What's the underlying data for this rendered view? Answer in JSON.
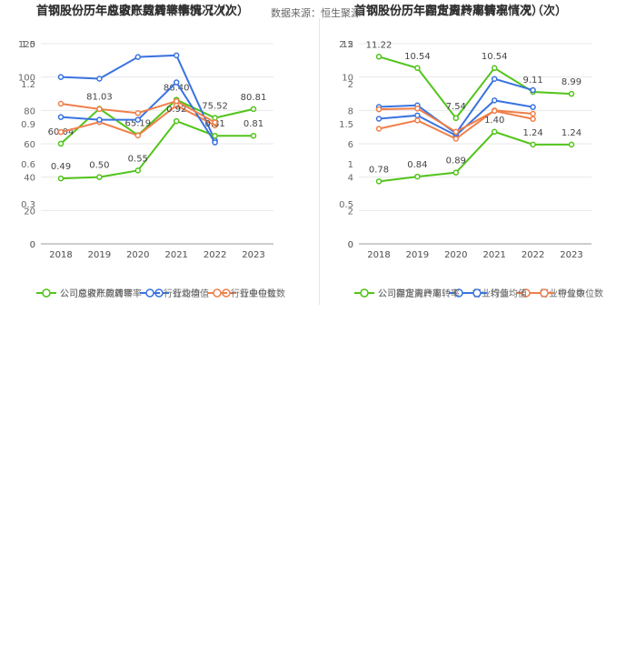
{
  "source_label": "数据来源：恒生聚源",
  "colors": {
    "company": "#52c41a",
    "avg": "#3a73e0",
    "median": "#f07f4a",
    "grid": "#e8e8e8",
    "axis": "#999999"
  },
  "chart_data": [
    {
      "type": "line",
      "title": "首钢股份历年应收账款周转率情况（次）",
      "categories": [
        "2018",
        "2019",
        "2020",
        "2021",
        "2022",
        "2023"
      ],
      "ylim": [
        0,
        120
      ],
      "yticks": [
        "0",
        "20",
        "40",
        "60",
        "80",
        "100",
        "120"
      ],
      "series": [
        {
          "name": "公司应收账款周转率",
          "color_key": "company",
          "values": [
            60.04,
            81.03,
            65.19,
            86.4,
            75.52,
            80.81
          ],
          "labels": [
            "60.04",
            "81.03",
            "65.19",
            "86.40",
            "75.52",
            "80.81"
          ]
        },
        {
          "name": "行业均值",
          "color_key": "avg",
          "values": [
            100,
            99,
            112,
            113,
            62,
            null
          ],
          "labels": []
        },
        {
          "name": "行业中位数",
          "color_key": "median",
          "values": [
            67,
            73,
            65,
            83,
            71,
            null
          ],
          "labels": []
        }
      ],
      "legend": [
        "公司应收账款周转率",
        "行业均值",
        "行业中位数"
      ]
    },
    {
      "type": "line",
      "title": "首钢股份历年存货周转率情况（次）",
      "categories": [
        "2018",
        "2019",
        "2020",
        "2021",
        "2022",
        "2023"
      ],
      "ylim": [
        0,
        12
      ],
      "yticks": [
        "0",
        "2",
        "4",
        "6",
        "8",
        "10",
        "12"
      ],
      "series": [
        {
          "name": "公司存货周转率",
          "color_key": "company",
          "values": [
            11.22,
            10.54,
            7.54,
            10.54,
            9.11,
            8.99
          ],
          "labels": [
            "11.22",
            "10.54",
            "7.54",
            "10.54",
            "9.11",
            "8.99"
          ]
        },
        {
          "name": "行业均值",
          "color_key": "avg",
          "values": [
            7.5,
            7.7,
            6.5,
            8.6,
            8.2,
            null
          ],
          "labels": []
        },
        {
          "name": "行业中位数",
          "color_key": "median",
          "values": [
            6.9,
            7.4,
            6.3,
            8.0,
            7.8,
            null
          ],
          "labels": []
        }
      ],
      "legend": [
        "公司存货周转率",
        "行业均值",
        "行业中位数"
      ]
    },
    {
      "type": "line",
      "title": "首钢股份历年总资产周转率情况（次）",
      "categories": [
        "2018",
        "2019",
        "2020",
        "2021",
        "2022",
        "2023"
      ],
      "ylim": [
        0,
        1.5
      ],
      "yticks": [
        "0",
        "0.3",
        "0.6",
        "0.9",
        "1.2",
        "1.5"
      ],
      "series": [
        {
          "name": "公司总资产周转率",
          "color_key": "company",
          "values": [
            0.49,
            0.5,
            0.55,
            0.92,
            0.81,
            0.81
          ],
          "labels": [
            "0.49",
            "0.50",
            "0.55",
            "0.92",
            "0.81",
            "0.81"
          ]
        },
        {
          "name": "行业均值",
          "color_key": "avg",
          "values": [
            0.95,
            0.93,
            0.93,
            1.21,
            0.76,
            null
          ],
          "labels": []
        },
        {
          "name": "行业中位数",
          "color_key": "median",
          "values": [
            1.05,
            1.01,
            0.98,
            1.07,
            0.91,
            null
          ],
          "labels": []
        }
      ],
      "legend": [
        "公司总资产周转率",
        "行业均值",
        "行业中位数"
      ]
    },
    {
      "type": "line",
      "title": "首钢股份历年固定资产周转率情况（次）",
      "categories": [
        "2018",
        "2019",
        "2020",
        "2021",
        "2022",
        "2023"
      ],
      "ylim": [
        0,
        2.5
      ],
      "yticks": [
        "0",
        "0.5",
        "1",
        "1.5",
        "2",
        "2.5"
      ],
      "series": [
        {
          "name": "公司固定资产周转率",
          "color_key": "company",
          "values": [
            0.78,
            0.84,
            0.89,
            1.4,
            1.24,
            1.24
          ],
          "labels": [
            "0.78",
            "0.84",
            "0.89",
            "1.40",
            "1.24",
            "1.24"
          ]
        },
        {
          "name": "行业均值",
          "color_key": "avg",
          "values": [
            1.71,
            1.73,
            1.38,
            2.06,
            1.92,
            null
          ],
          "labels": []
        },
        {
          "name": "行业中位数",
          "color_key": "median",
          "values": [
            1.68,
            1.69,
            1.4,
            1.66,
            1.56,
            null
          ],
          "labels": []
        }
      ],
      "legend": [
        "公司固定资产周转率",
        "行业均值",
        "行业中位数"
      ]
    }
  ]
}
